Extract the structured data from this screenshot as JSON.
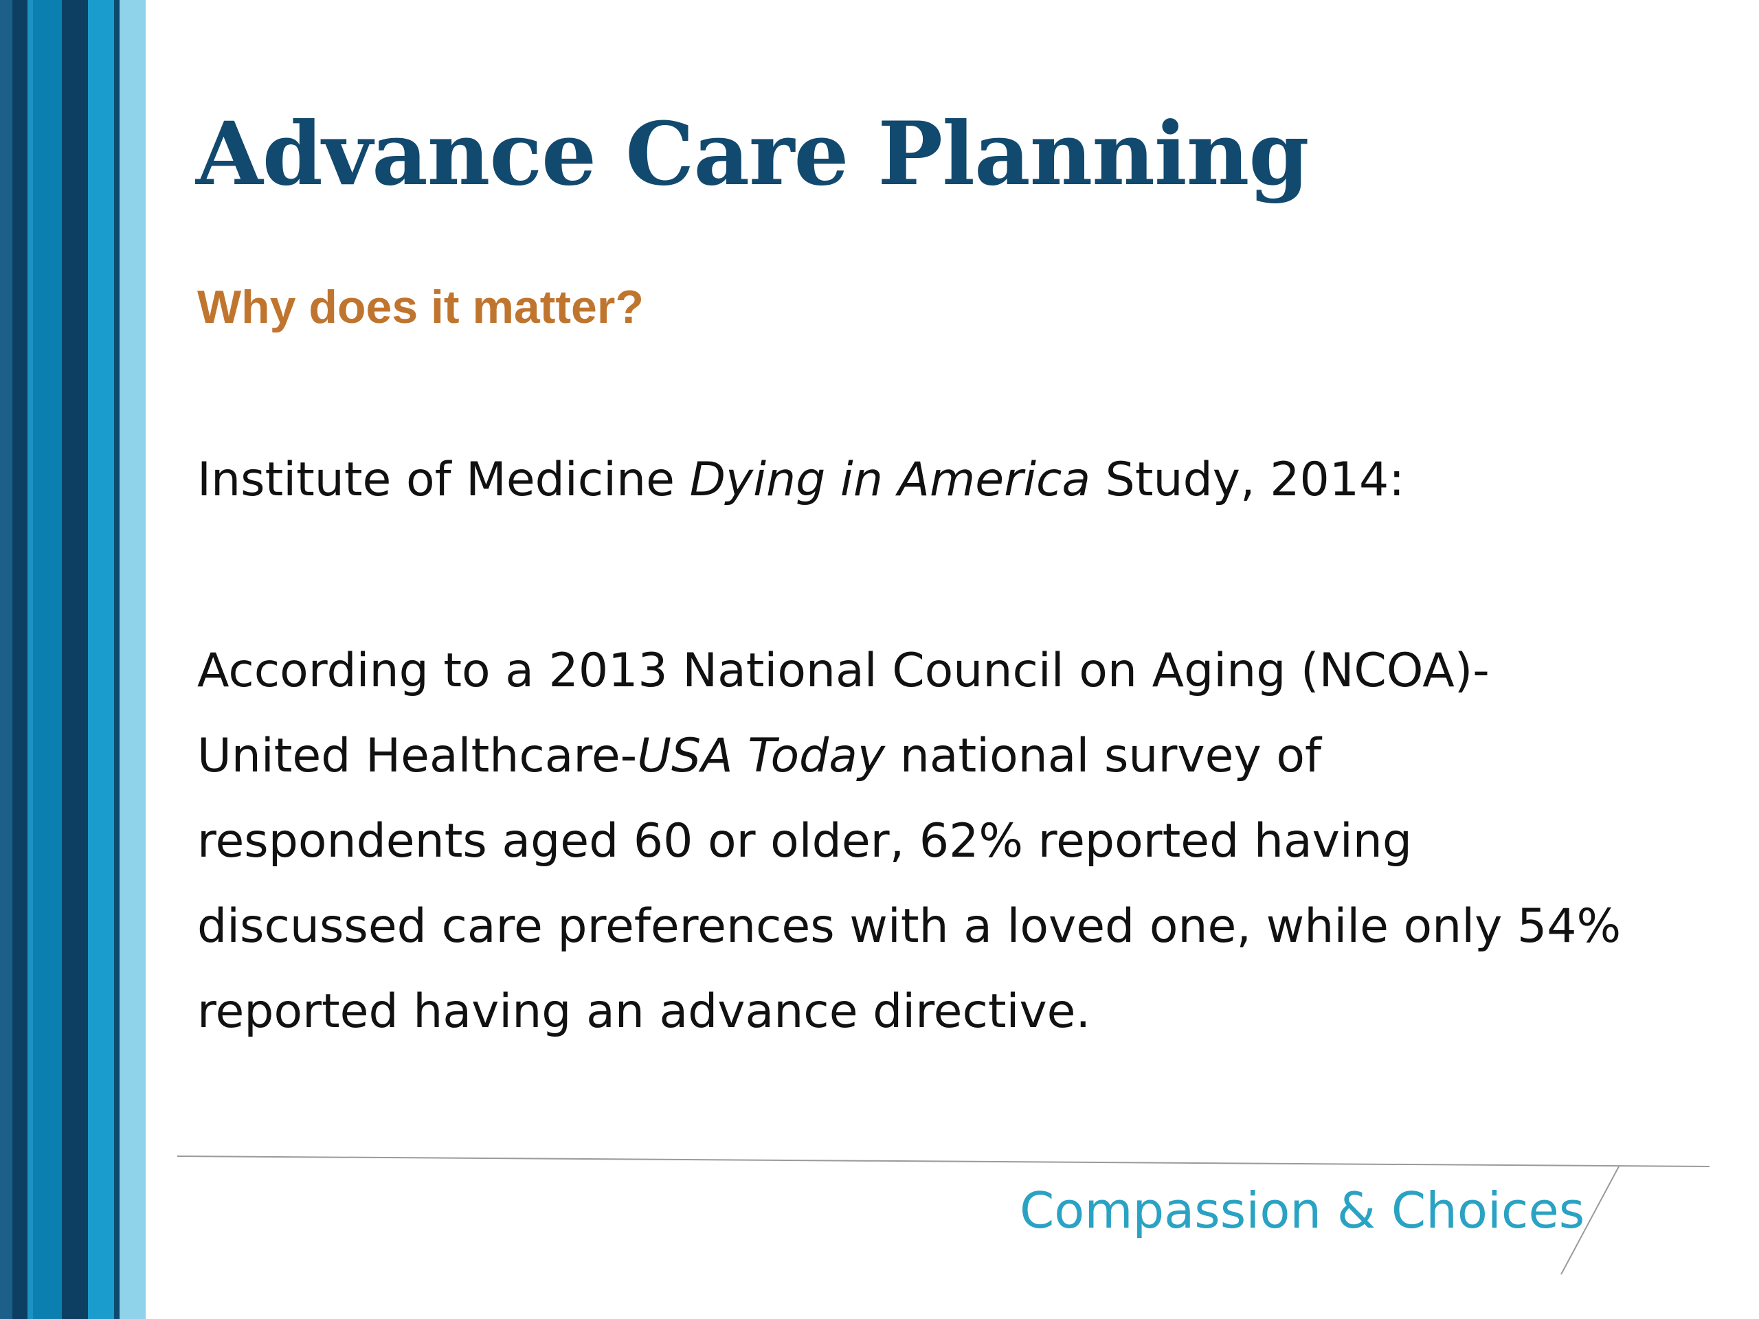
{
  "slide": {
    "title": "Advance Care Planning",
    "subtitle": "Why does it matter?",
    "study_line": {
      "before": "Institute of Medicine ",
      "italic": "Dying in America",
      "after": " Study, 2014:"
    },
    "survey": {
      "line1": "According to a 2013 National Council on Aging (NCOA)-",
      "line2_before": "United Healthcare-",
      "line2_italic": "USA Today",
      "line2_after": " national survey of",
      "line3": "respondents aged 60 or older, 62% reported having",
      "line4": "discussed care preferences with a loved one, while only 54%",
      "line5": "reported having an advance directive."
    },
    "brand": "Compassion & Choices"
  },
  "colors": {
    "title": "#12496e",
    "subtitle": "#c0752f",
    "brand": "#2aa2c3",
    "stripe_dark": "#0d3f63",
    "stripe_mid": "#0b7fb0",
    "stripe_light": "#8fd3ea"
  }
}
